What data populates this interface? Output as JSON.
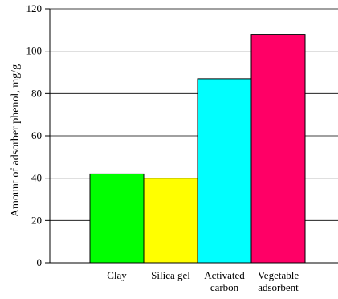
{
  "chart_data": {
    "type": "bar",
    "title": "",
    "xlabel": "",
    "ylabel": "Amount of adsorber phenol, mg/g",
    "ylim": [
      0,
      120
    ],
    "yticks": [
      0,
      20,
      40,
      60,
      80,
      100,
      120
    ],
    "grid": true,
    "categories": [
      [
        "Clay"
      ],
      [
        "Silica gel"
      ],
      [
        "Activated",
        "carbon"
      ],
      [
        "Vegetable",
        "adsorbent"
      ]
    ],
    "values": [
      42,
      40,
      87,
      108
    ],
    "colors": [
      "#00ff00",
      "#ffff00",
      "#00ffff",
      "#ff0066"
    ]
  }
}
